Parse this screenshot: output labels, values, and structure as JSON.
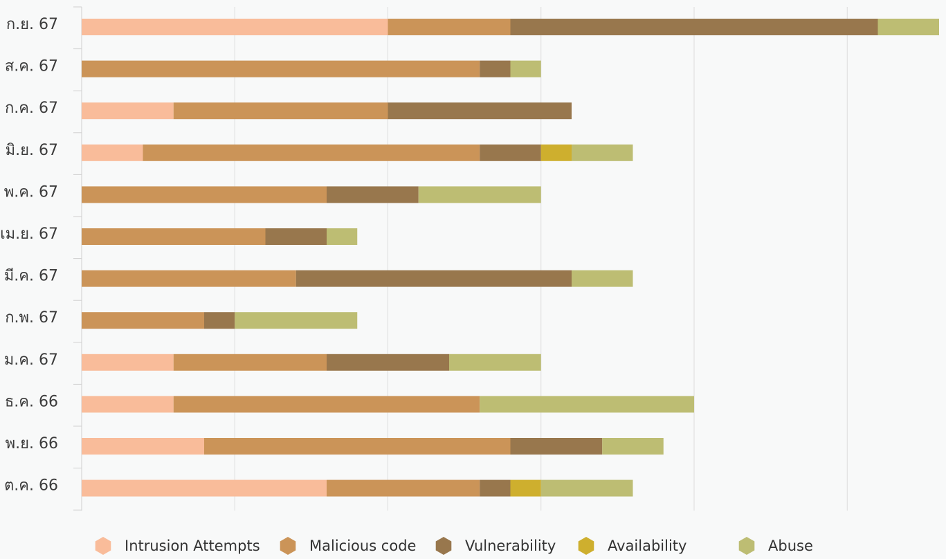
{
  "chart_data": {
    "type": "bar",
    "orientation": "horizontal",
    "stacked": true,
    "categories": [
      "ก.ย. 67",
      "ส.ค. 67",
      "ก.ค. 67",
      "มิ.ย. 67",
      "พ.ค. 67",
      "เม.ย. 67",
      "มี.ค. 67",
      "ก.พ. 67",
      "ม.ค. 67",
      "ธ.ค. 66",
      "พ.ย. 66",
      "ต.ค. 66"
    ],
    "series": [
      {
        "name": "Intrusion Attempts",
        "color": "#f9bc9a",
        "values": [
          10,
          0,
          3,
          2,
          0,
          0,
          0,
          0,
          3,
          3,
          4,
          8
        ]
      },
      {
        "name": "Malicious code",
        "color": "#cb9458",
        "values": [
          4,
          13,
          7,
          11,
          8,
          6,
          7,
          4,
          5,
          10,
          10,
          5
        ]
      },
      {
        "name": "Vulnerability",
        "color": "#98774d",
        "values": [
          12,
          1,
          6,
          2,
          3,
          2,
          9,
          1,
          4,
          0,
          3,
          1
        ]
      },
      {
        "name": "Availability",
        "color": "#ceaf2e",
        "values": [
          0,
          0,
          0,
          1,
          0,
          0,
          0,
          0,
          0,
          0,
          0,
          1
        ]
      },
      {
        "name": "Abuse",
        "color": "#bdbd73",
        "values": [
          2,
          1,
          0,
          2,
          4,
          1,
          2,
          4,
          3,
          7,
          2,
          3
        ]
      }
    ],
    "xlim": [
      0,
      28
    ],
    "x_ticks": [
      0,
      5,
      10,
      15,
      20,
      25
    ],
    "grid": true,
    "legend_position": "bottom",
    "title": "",
    "xlabel": "",
    "ylabel": ""
  }
}
